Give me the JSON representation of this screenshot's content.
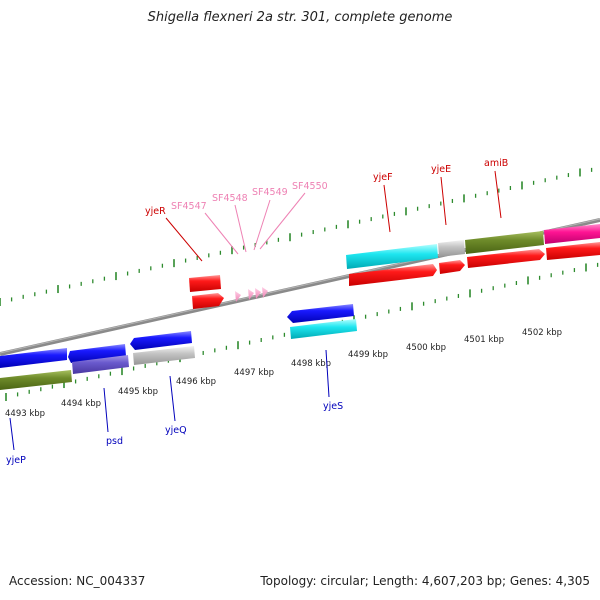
{
  "header": {
    "title": "Shigella flexneri 2a str. 301, complete genome"
  },
  "footer": {
    "accession": "Accession: NC_004337",
    "topology": "Topology: circular; Length: 4,607,203 bp; Genes: 4,305"
  },
  "scale_labels": [
    "4493 kbp",
    "4494 kbp",
    "4495 kbp",
    "4496 kbp",
    "4497 kbp",
    "4498 kbp",
    "4499 kbp",
    "4500 kbp",
    "4501 kbp",
    "4502 kbp"
  ],
  "upper_gene_labels": [
    "yjeR",
    "SF4547",
    "SF4548",
    "SF4549",
    "SF4550",
    "yjeF",
    "yjeE",
    "amiB"
  ],
  "lower_gene_labels": [
    "yjeP",
    "psd",
    "yjeQ",
    "yjeS"
  ],
  "colors": {
    "forward_label": "#cc0000",
    "pseudo_label": "#ee82b4",
    "reverse_label": "#0000bb",
    "tick": "#2e8b2e",
    "backbone": "#808080"
  }
}
